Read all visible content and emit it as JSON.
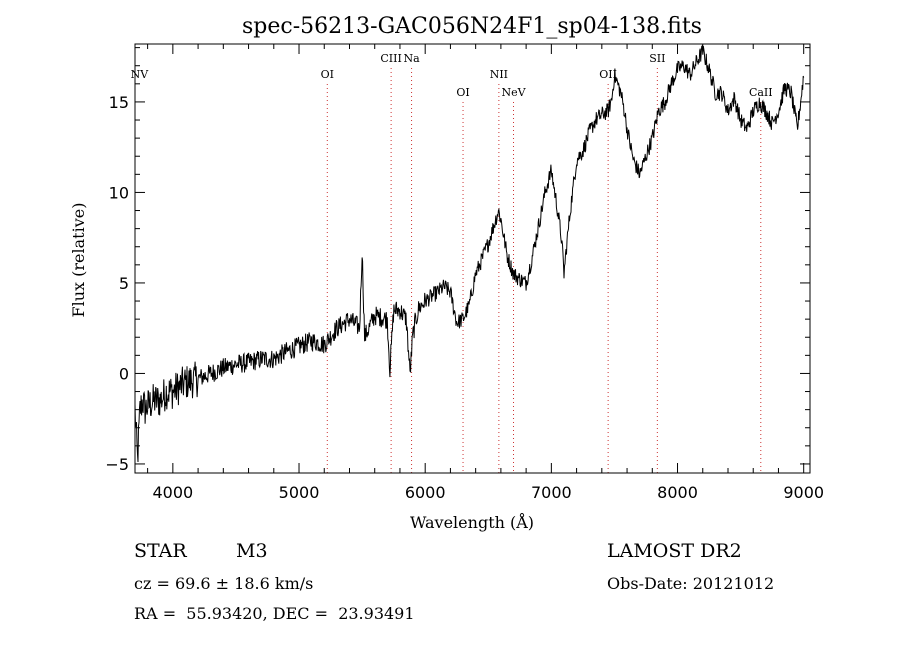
{
  "chart_data": {
    "type": "line",
    "title": "spec-56213-GAC056N24F1_sp04-138.fits",
    "xlabel": "Wavelength (Å)",
    "ylabel": "Flux (relative)",
    "xlim": [
      3700,
      9050
    ],
    "ylim": [
      -5.5,
      18.2
    ],
    "x_ticks": [
      4000,
      5000,
      6000,
      7000,
      8000,
      9000
    ],
    "y_ticks": [
      -5,
      0,
      5,
      10,
      15
    ],
    "x_tick_labels": [
      "4000",
      "5000",
      "6000",
      "7000",
      "8000",
      "9000"
    ],
    "y_tick_labels": [
      "−5",
      "0",
      "5",
      "10",
      "15"
    ],
    "grid": false,
    "line_color": "#000000",
    "marker_color": "#cc3333",
    "emission_lines": [
      {
        "label": "NV",
        "x": 3735,
        "row": "upper"
      },
      {
        "label": "OI",
        "x": 5224,
        "row": "upper"
      },
      {
        "label": "CIII",
        "x": 5730,
        "row": "top"
      },
      {
        "label": "Na",
        "x": 5892,
        "row": "top"
      },
      {
        "label": "OI",
        "x": 6300,
        "row": "lower"
      },
      {
        "label": "NII",
        "x": 6584,
        "row": "upper"
      },
      {
        "label": "NeV",
        "x": 6700,
        "row": "lower"
      },
      {
        "label": "OII",
        "x": 7450,
        "row": "upper"
      },
      {
        "label": "SII",
        "x": 7840,
        "row": "top"
      },
      {
        "label": "CaII",
        "x": 8660,
        "row": "lower"
      }
    ],
    "series": [
      {
        "x": [
          3700,
          3720,
          3740,
          3760,
          3780,
          3800,
          3850,
          3900,
          3950,
          4000,
          4100,
          4200,
          4300,
          4400,
          4500,
          4600,
          4700,
          4800,
          4900,
          5000,
          5100,
          5200,
          5300,
          5400,
          5480,
          5500,
          5520,
          5600,
          5700,
          5720,
          5750,
          5800,
          5850,
          5880,
          5900,
          5920,
          5950,
          6000,
          6100,
          6150,
          6200,
          6250,
          6300,
          6350,
          6400,
          6450,
          6500,
          6550,
          6580,
          6600,
          6650,
          6700,
          6750,
          6800,
          6850,
          6900,
          6950,
          7000,
          7050,
          7080,
          7100,
          7120,
          7150,
          7200,
          7250,
          7300,
          7350,
          7400,
          7450,
          7480,
          7500,
          7550,
          7580,
          7600,
          7650,
          7700,
          7750,
          7800,
          7850,
          7900,
          7950,
          8000,
          8050,
          8100,
          8150,
          8200,
          8250,
          8300,
          8350,
          8400,
          8450,
          8500,
          8550,
          8600,
          8650,
          8700,
          8750,
          8800,
          8850,
          8900,
          8950,
          9000
        ],
        "y": [
          -2,
          -4.8,
          -2,
          -1.5,
          -2,
          -1.8,
          -1.5,
          -1.5,
          -1,
          -1,
          -0.5,
          -0.3,
          0,
          0.3,
          0.5,
          0.6,
          0.8,
          0.8,
          1.2,
          1.5,
          1.8,
          1.6,
          2.5,
          3,
          2.5,
          6.8,
          2,
          3.2,
          3,
          0.2,
          3.5,
          3.5,
          3,
          0,
          2,
          2.8,
          3.6,
          4,
          4.5,
          4.8,
          4.5,
          2.8,
          3,
          3.8,
          5.5,
          6.3,
          7.2,
          8.3,
          9,
          8.5,
          6.5,
          5.5,
          5.2,
          5,
          6.5,
          8.2,
          10,
          11.2,
          9,
          7.5,
          5.5,
          7,
          9,
          11.8,
          12.3,
          13.3,
          14,
          14.3,
          14.5,
          15.2,
          16.5,
          15.5,
          14.5,
          13.5,
          11.8,
          11,
          12,
          13,
          14.5,
          15,
          16,
          16.8,
          17,
          16.5,
          17.2,
          17.8,
          16.8,
          15.5,
          15.5,
          14.5,
          15.2,
          14,
          13.5,
          14.5,
          15,
          14.5,
          13.8,
          14.5,
          15.8,
          15.5,
          13.5,
          16.5
        ]
      }
    ]
  },
  "info": {
    "object_class": "STAR",
    "subclass": "M3",
    "survey": "LAMOST DR2",
    "cz": "cz = 69.6 ± 18.6 km/s",
    "obs_date": "Obs-Date: 20121012",
    "coords": "RA =  55.93420, DEC =  23.93491"
  }
}
